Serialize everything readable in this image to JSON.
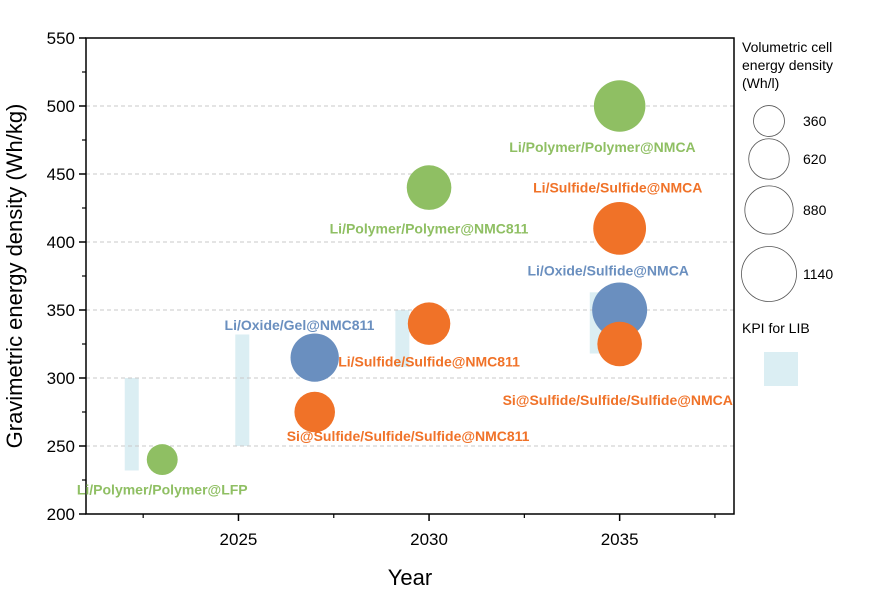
{
  "chart_data": {
    "type": "scatter",
    "xlabel": "Year",
    "ylabel": "Gravimetric energy density (Wh/kg)",
    "xlim": [
      2021,
      2038
    ],
    "ylim": [
      200,
      550
    ],
    "x_ticks": [
      "2025",
      "2030",
      "2035"
    ],
    "y_ticks": [
      "200",
      "250",
      "300",
      "350",
      "400",
      "450",
      "500",
      "550"
    ],
    "colors": {
      "green": "#8fbf63",
      "orange": "#f07228",
      "blue": "#6a8fbf",
      "kpi": "#dbeef3"
    },
    "points": [
      {
        "label": "Li/Polymer/Polymer@LFP",
        "x": 2023,
        "y": 240,
        "volumetric": 360,
        "color": "green"
      },
      {
        "label": "Si@Sulfide/Sulfide/Sulfide@NMC811",
        "x": 2027,
        "y": 275,
        "volumetric": 620,
        "color": "orange"
      },
      {
        "label": "Li/Oxide/Gel@NMC811",
        "x": 2027,
        "y": 315,
        "volumetric": 880,
        "color": "blue"
      },
      {
        "label": "Li/Sulfide/Sulfide@NMC811",
        "x": 2030,
        "y": 340,
        "volumetric": 680,
        "color": "orange"
      },
      {
        "label": "Li/Polymer/Polymer@NMC811",
        "x": 2030,
        "y": 440,
        "volumetric": 750,
        "color": "green"
      },
      {
        "label": "Si@Sulfide/Sulfide/Sulfide@NMCA",
        "x": 2035,
        "y": 325,
        "volumetric": 750,
        "color": "orange"
      },
      {
        "label": "Li/Oxide/Sulfide@NMCA",
        "x": 2035,
        "y": 350,
        "volumetric": 1140,
        "color": "blue"
      },
      {
        "label": "Li/Sulfide/Sulfide@NMCA",
        "x": 2035,
        "y": 410,
        "volumetric": 1050,
        "color": "orange"
      },
      {
        "label": "Li/Polymer/Polymer@NMCA",
        "x": 2035,
        "y": 500,
        "volumetric": 1000,
        "color": "green"
      }
    ],
    "kpi_ranges": [
      {
        "x": 2022.2,
        "y_low": 232,
        "y_high": 300
      },
      {
        "x": 2025.1,
        "y_low": 250,
        "y_high": 332
      },
      {
        "x": 2029.3,
        "y_low": 308,
        "y_high": 350
      },
      {
        "x": 2034.4,
        "y_low": 318,
        "y_high": 363
      }
    ],
    "legend": {
      "size_title": "Volumetric cell energy density (Wh/l)",
      "size_title_lines": [
        "Volumetric cell",
        "energy density",
        " (Wh/l)"
      ],
      "sizes": [
        360,
        620,
        880,
        1140
      ],
      "size_labels": [
        "360",
        "620",
        "880",
        "1140"
      ],
      "kpi_label": "KPI for LIB",
      "placement": "right"
    }
  }
}
